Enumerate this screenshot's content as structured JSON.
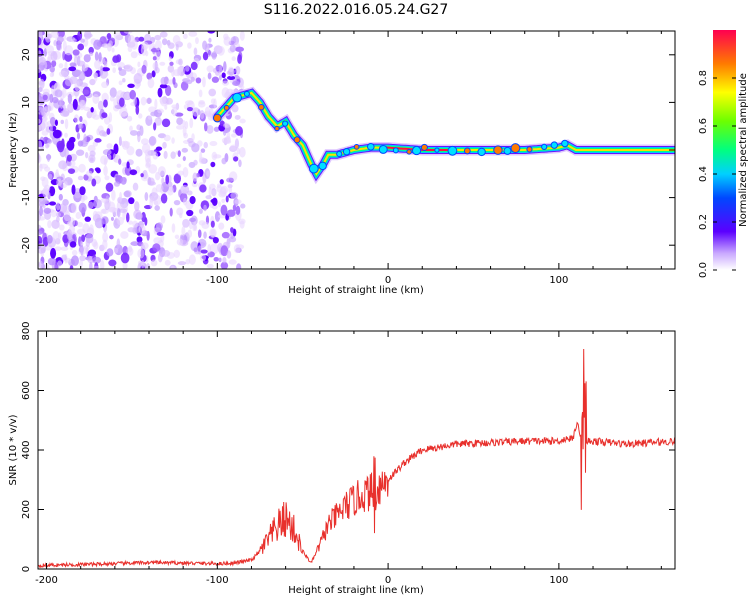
{
  "title": "S116.2022.016.05.24.G27",
  "chart_data": [
    {
      "type": "heatmap",
      "xlabel": "Height of straight line (km)",
      "ylabel": "Frequency (Hz)",
      "xlim": [
        -205,
        168
      ],
      "ylim": [
        -25,
        25
      ],
      "xticks": [
        -200,
        -100,
        0,
        100
      ],
      "yticks": [
        -20,
        -10,
        0,
        10,
        20
      ],
      "colorbar": {
        "label": "Normalized spectral amplitude",
        "range": [
          0,
          1
        ],
        "ticks": [
          "0.0",
          "0.2",
          "0.4",
          "0.6",
          "0.8"
        ]
      },
      "ridge": {
        "description_points_x": [
          -100,
          -90,
          -80,
          -75,
          -70,
          -65,
          -60,
          -55,
          -50,
          -45,
          -42,
          -38,
          -35,
          -30,
          -20,
          -10,
          0,
          20,
          40,
          60,
          80,
          100,
          105,
          110,
          120,
          140,
          168
        ],
        "description_points_y": [
          7,
          11,
          12,
          10,
          7,
          5,
          6,
          3,
          1,
          -3,
          -5,
          -3,
          -1,
          -1,
          0,
          0.5,
          0.5,
          0,
          0,
          0,
          0,
          0.5,
          1,
          0,
          0,
          0,
          0
        ]
      }
    },
    {
      "type": "line",
      "xlabel": "Height of straight line (km)",
      "ylabel": "SNR (10 * v/v)",
      "xlim": [
        -205,
        168
      ],
      "ylim": [
        0,
        800
      ],
      "xticks": [
        -200,
        -100,
        0,
        100
      ],
      "yticks": [
        0,
        200,
        400,
        600,
        800
      ],
      "color": "#e8302c",
      "series": [
        {
          "name": "",
          "x": [
            -205,
            -180,
            -160,
            -140,
            -120,
            -100,
            -90,
            -80,
            -75,
            -70,
            -65,
            -60,
            -55,
            -50,
            -45,
            -40,
            -35,
            -30,
            -25,
            -20,
            -15,
            -10,
            -5,
            0,
            10,
            20,
            30,
            40,
            60,
            80,
            100,
            105,
            108,
            111,
            113,
            115,
            117,
            120,
            140,
            168
          ],
          "y": [
            12,
            15,
            18,
            22,
            20,
            18,
            20,
            30,
            60,
            100,
            140,
            170,
            130,
            60,
            20,
            80,
            150,
            180,
            210,
            230,
            250,
            260,
            280,
            300,
            360,
            400,
            410,
            420,
            425,
            430,
            430,
            440,
            435,
            500,
            430,
            420,
            430,
            430,
            420,
            430
          ]
        }
      ]
    }
  ]
}
